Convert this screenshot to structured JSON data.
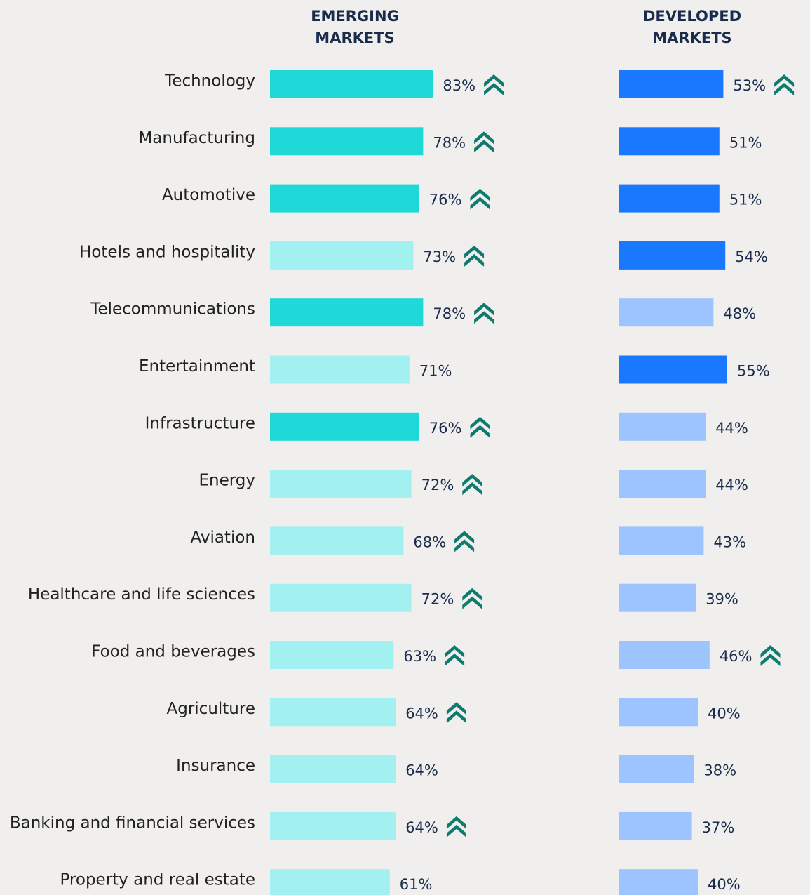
{
  "chart_data": {
    "type": "bar",
    "orientation": "horizontal",
    "categories": [
      "Technology",
      "Manufacturing",
      "Automotive",
      "Hotels and hospitality",
      "Telecommunications",
      "Entertainment",
      "Infrastructure",
      "Energy",
      "Aviation",
      "Healthcare and life sciences",
      "Food and beverages",
      "Agriculture",
      "Insurance",
      "Banking and financial services",
      "Property and real estate"
    ],
    "series": [
      {
        "name": "EMERGING MARKETS",
        "values": [
          83,
          78,
          76,
          73,
          78,
          71,
          76,
          72,
          68,
          72,
          63,
          64,
          64,
          64,
          61
        ],
        "value_labels": [
          "83%",
          "78%",
          "76%",
          "73%",
          "78%",
          "71%",
          "76%",
          "72%",
          "68%",
          "72%",
          "63%",
          "64%",
          "64%",
          "64%",
          "61%"
        ],
        "colors": [
          "#1fd8d8",
          "#1fd8d8",
          "#1fd8d8",
          "#a3f0f0",
          "#1fd8d8",
          "#a3f0f0",
          "#1fd8d8",
          "#a3f0f0",
          "#a3f0f0",
          "#a3f0f0",
          "#a3f0f0",
          "#a3f0f0",
          "#a3f0f0",
          "#a3f0f0",
          "#a3f0f0"
        ],
        "arrows": [
          true,
          true,
          true,
          true,
          true,
          false,
          true,
          true,
          true,
          true,
          true,
          true,
          false,
          true,
          false
        ]
      },
      {
        "name": "DEVELOPED MARKETS",
        "values": [
          53,
          51,
          51,
          54,
          48,
          55,
          44,
          44,
          43,
          39,
          46,
          40,
          38,
          37,
          40
        ],
        "value_labels": [
          "53%",
          "51%",
          "51%",
          "54%",
          "48%",
          "55%",
          "44%",
          "44%",
          "43%",
          "39%",
          "46%",
          "40%",
          "38%",
          "37%",
          "40%"
        ],
        "colors": [
          "#1a78ff",
          "#1a78ff",
          "#1a78ff",
          "#1a78ff",
          "#9ec4ff",
          "#1a78ff",
          "#9ec4ff",
          "#9ec4ff",
          "#9ec4ff",
          "#9ec4ff",
          "#9ec4ff",
          "#9ec4ff",
          "#9ec4ff",
          "#9ec4ff",
          "#9ec4ff"
        ],
        "arrows": [
          true,
          false,
          false,
          false,
          false,
          false,
          false,
          false,
          false,
          false,
          true,
          false,
          false,
          false,
          false
        ]
      }
    ],
    "arrow_color": "#0f7a6e"
  }
}
